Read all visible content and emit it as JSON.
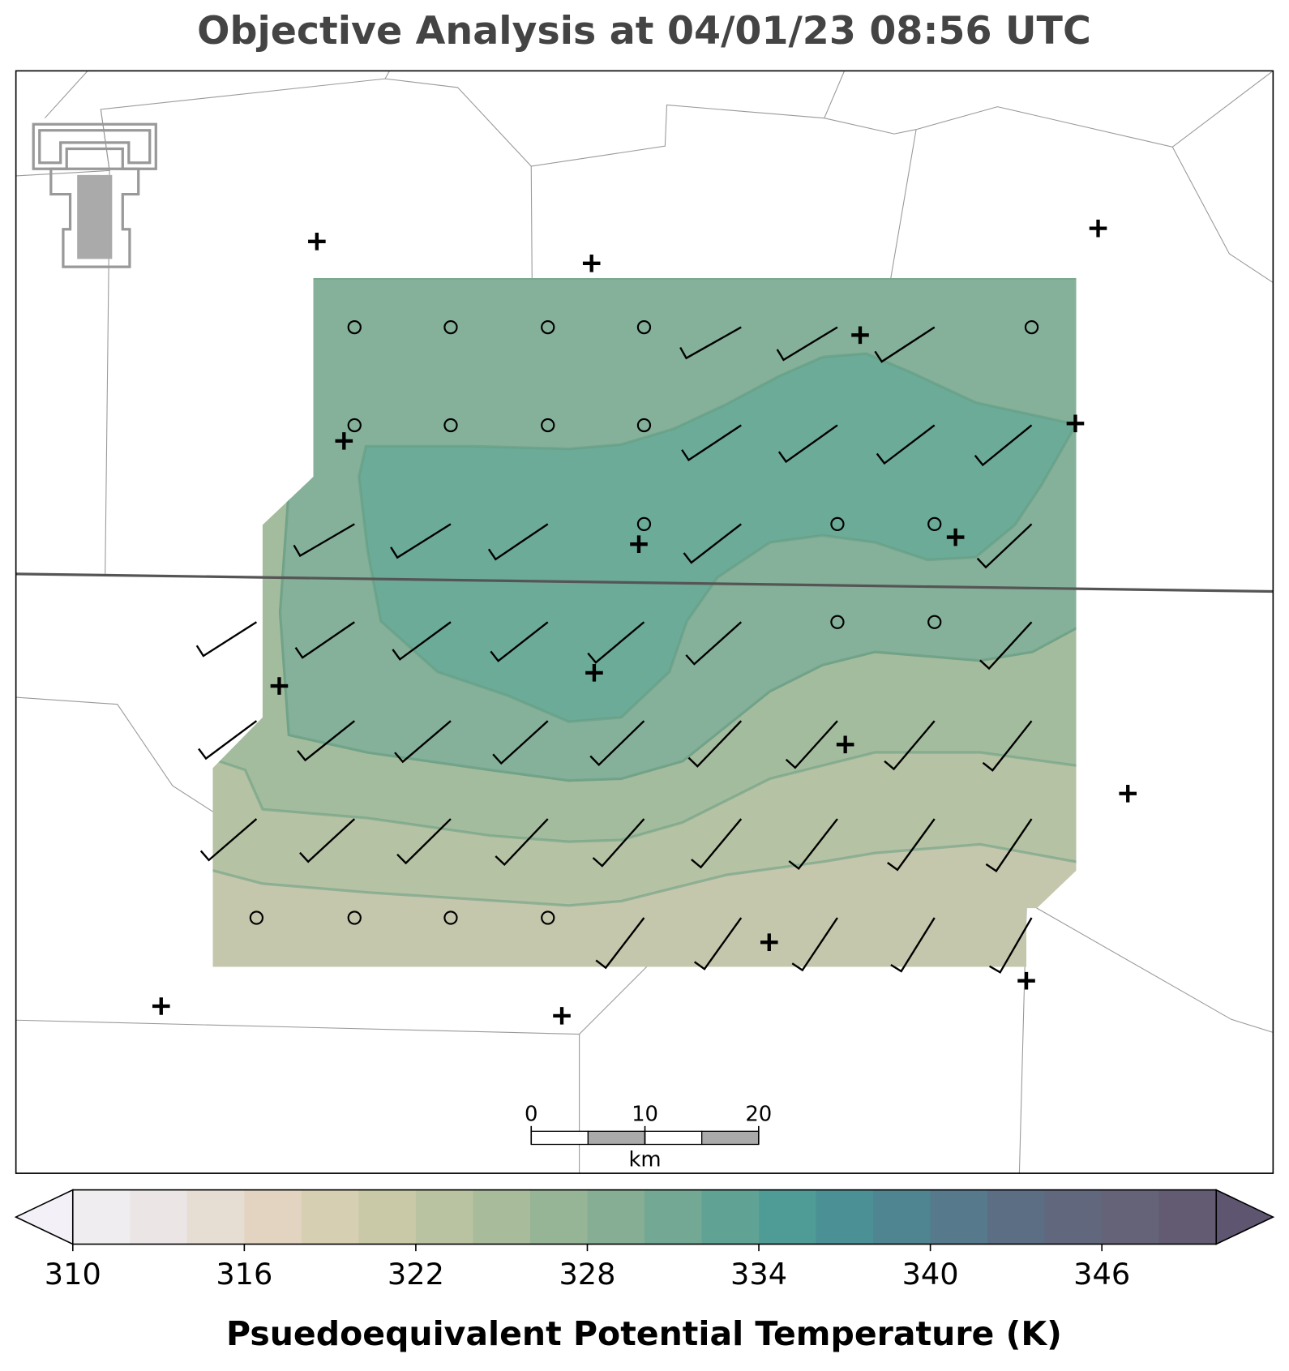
{
  "title": "Objective Analysis at 04/01/23 08:56 UTC",
  "colorbar": {
    "label": "Psuedoequivalent Potential Temperature (K)",
    "range": [
      310,
      350
    ],
    "ticks": [
      310,
      316,
      322,
      328,
      334,
      340,
      346
    ],
    "colors": [
      "#f0edf0",
      "#ebe6e5",
      "#e6ddd3",
      "#e2d4c0",
      "#d6cfb2",
      "#c9c9a8",
      "#b9c3a1",
      "#a8bc9b",
      "#96b597",
      "#86ae95",
      "#73a994",
      "#60a395",
      "#4f9b96",
      "#4a9095",
      "#4f8591",
      "#56798b",
      "#5b6e84",
      "#61677d",
      "#656378",
      "#625b72"
    ],
    "under_color": "#f3f1f7",
    "over_color": "#5e5670"
  },
  "scale_bar": {
    "ticks": [
      0,
      10,
      20
    ],
    "unit": "km"
  }
}
